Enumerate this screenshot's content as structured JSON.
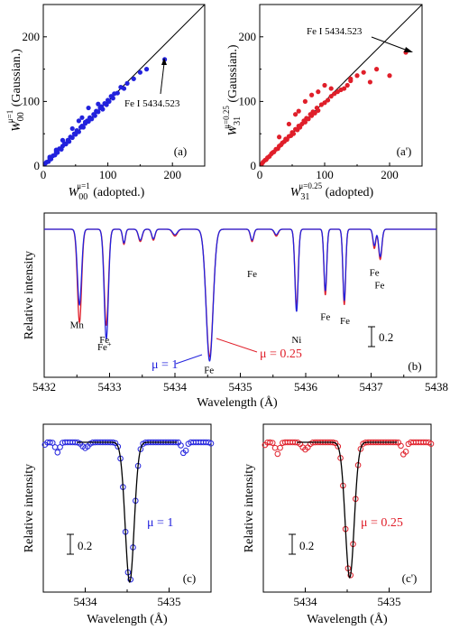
{
  "colors": {
    "mu1": "#2222dd",
    "mu025": "#e01f2a",
    "fit": "#000000"
  },
  "chart_data": [
    {
      "panel": "a",
      "type": "scatter",
      "panel_label": "(a)",
      "xlabel_main": "W",
      "xlabel_sub": "00",
      "xlabel_sup": "μ=1",
      "xlabel_tail": " (adopted.)",
      "ylabel_main": "W",
      "ylabel_sub": "00",
      "ylabel_sup": "μ=1",
      "ylabel_tail": " (Gaussian.)",
      "xlim": [
        0,
        250
      ],
      "ylim": [
        0,
        250
      ],
      "xticks": [
        "0",
        "100",
        "200"
      ],
      "xtick_values": [
        0,
        100,
        200
      ],
      "yticks": [
        "0",
        "100",
        "200"
      ],
      "ytick_values": [
        0,
        100,
        200
      ],
      "annotation": "Fe I 5434.523",
      "annotated_point": [
        188,
        165
      ],
      "points": [
        [
          3,
          4
        ],
        [
          5,
          6
        ],
        [
          8,
          7
        ],
        [
          10,
          12
        ],
        [
          12,
          11
        ],
        [
          15,
          16
        ],
        [
          18,
          17
        ],
        [
          20,
          22
        ],
        [
          22,
          21
        ],
        [
          25,
          27
        ],
        [
          28,
          26
        ],
        [
          30,
          31
        ],
        [
          33,
          35
        ],
        [
          35,
          34
        ],
        [
          38,
          40
        ],
        [
          40,
          38
        ],
        [
          42,
          45
        ],
        [
          45,
          44
        ],
        [
          48,
          50
        ],
        [
          50,
          49
        ],
        [
          52,
          55
        ],
        [
          55,
          53
        ],
        [
          58,
          60
        ],
        [
          60,
          62
        ],
        [
          62,
          60
        ],
        [
          65,
          66
        ],
        [
          68,
          70
        ],
        [
          70,
          69
        ],
        [
          72,
          75
        ],
        [
          75,
          73
        ],
        [
          78,
          80
        ],
        [
          80,
          78
        ],
        [
          82,
          85
        ],
        [
          85,
          84
        ],
        [
          88,
          90
        ],
        [
          90,
          92
        ],
        [
          92,
          88
        ],
        [
          95,
          97
        ],
        [
          98,
          95
        ],
        [
          100,
          102
        ],
        [
          102,
          100
        ],
        [
          105,
          108
        ],
        [
          108,
          105
        ],
        [
          110,
          112
        ],
        [
          115,
          113
        ],
        [
          120,
          122
        ],
        [
          125,
          120
        ],
        [
          130,
          128
        ],
        [
          140,
          135
        ],
        [
          150,
          145
        ],
        [
          160,
          150
        ],
        [
          55,
          70
        ],
        [
          60,
          75
        ],
        [
          70,
          90
        ],
        [
          30,
          40
        ],
        [
          45,
          58
        ],
        [
          65,
          68
        ],
        [
          85,
          96
        ],
        [
          20,
          25
        ],
        [
          10,
          14
        ],
        [
          188,
          165
        ]
      ]
    },
    {
      "panel": "a'",
      "type": "scatter",
      "panel_label": "(a')",
      "xlabel_main": "W",
      "xlabel_sub": "31",
      "xlabel_sup": "μ=0.25",
      "xlabel_tail": " (adopted)",
      "ylabel_main": "W",
      "ylabel_sub": "31",
      "ylabel_sup": "μ=0.25",
      "ylabel_tail": " (Gaussian.)",
      "xlim": [
        0,
        250
      ],
      "ylim": [
        0,
        250
      ],
      "xticks": [
        "0",
        "100",
        "200"
      ],
      "xtick_values": [
        0,
        100,
        200
      ],
      "yticks": [
        "0",
        "100",
        "200"
      ],
      "ytick_values": [
        0,
        100,
        200
      ],
      "annotation": "Fe I 5434.523",
      "annotated_point": [
        225,
        176
      ],
      "points": [
        [
          3,
          3
        ],
        [
          5,
          6
        ],
        [
          8,
          9
        ],
        [
          10,
          10
        ],
        [
          12,
          13
        ],
        [
          15,
          15
        ],
        [
          18,
          19
        ],
        [
          20,
          21
        ],
        [
          22,
          22
        ],
        [
          25,
          26
        ],
        [
          28,
          27
        ],
        [
          30,
          31
        ],
        [
          33,
          33
        ],
        [
          35,
          36
        ],
        [
          38,
          38
        ],
        [
          40,
          42
        ],
        [
          42,
          41
        ],
        [
          45,
          46
        ],
        [
          48,
          47
        ],
        [
          50,
          52
        ],
        [
          52,
          50
        ],
        [
          55,
          57
        ],
        [
          58,
          56
        ],
        [
          60,
          62
        ],
        [
          62,
          60
        ],
        [
          65,
          65
        ],
        [
          68,
          70
        ],
        [
          70,
          68
        ],
        [
          72,
          74
        ],
        [
          75,
          73
        ],
        [
          78,
          80
        ],
        [
          80,
          78
        ],
        [
          82,
          84
        ],
        [
          85,
          82
        ],
        [
          88,
          90
        ],
        [
          90,
          86
        ],
        [
          95,
          95
        ],
        [
          100,
          98
        ],
        [
          105,
          102
        ],
        [
          110,
          108
        ],
        [
          115,
          112
        ],
        [
          120,
          115
        ],
        [
          125,
          118
        ],
        [
          130,
          120
        ],
        [
          135,
          125
        ],
        [
          140,
          132
        ],
        [
          150,
          140
        ],
        [
          160,
          145
        ],
        [
          170,
          130
        ],
        [
          180,
          150
        ],
        [
          200,
          140
        ],
        [
          55,
          80
        ],
        [
          60,
          85
        ],
        [
          70,
          100
        ],
        [
          30,
          45
        ],
        [
          45,
          65
        ],
        [
          80,
          110
        ],
        [
          90,
          115
        ],
        [
          100,
          125
        ],
        [
          110,
          120
        ],
        [
          140,
          135
        ],
        [
          225,
          176
        ]
      ]
    },
    {
      "panel": "b",
      "type": "line",
      "panel_label": "(b)",
      "xlabel": "Wavelength (Å)",
      "ylabel": "Relative intensity",
      "xlim": [
        5432,
        5438
      ],
      "xticks": [
        "5432",
        "5433",
        "5434",
        "5435",
        "5436",
        "5437",
        "5438"
      ],
      "xtick_values": [
        5432,
        5433,
        5434,
        5435,
        5436,
        5437,
        5438
      ],
      "ylim": [
        0.0,
        1.05
      ],
      "scale_bar_label": "0.2",
      "mu1_label": "μ = 1",
      "mu025_label": "μ = 0.25",
      "line_labels": [
        {
          "text": "Mn",
          "x": 5432.5,
          "y": 0.28
        },
        {
          "text": "Fe",
          "x": 5432.92,
          "y": 0.17
        },
        {
          "text": "Fe+",
          "x": 5432.92,
          "y": 0.12
        },
        {
          "text": "Fe",
          "x": 5434.52,
          "y": -0.05
        },
        {
          "text": "Fe",
          "x": 5435.18,
          "y": 0.65
        },
        {
          "text": "Ni",
          "x": 5435.86,
          "y": 0.17
        },
        {
          "text": "Fe",
          "x": 5436.3,
          "y": 0.34
        },
        {
          "text": "Fe",
          "x": 5436.6,
          "y": 0.31
        },
        {
          "text": "Fe",
          "x": 5437.05,
          "y": 0.66
        },
        {
          "text": "Fe",
          "x": 5437.13,
          "y": 0.57
        }
      ],
      "lines": [
        {
          "center": 5432.54,
          "depth_mu1": 0.55,
          "depth_mu025": 0.68,
          "width": 0.045
        },
        {
          "center": 5432.95,
          "depth_mu1": 0.8,
          "depth_mu025": 0.7,
          "width": 0.045
        },
        {
          "center": 5433.22,
          "depth_mu1": 0.1,
          "depth_mu025": 0.11,
          "width": 0.03
        },
        {
          "center": 5433.47,
          "depth_mu1": 0.08,
          "depth_mu025": 0.09,
          "width": 0.04
        },
        {
          "center": 5433.67,
          "depth_mu1": 0.07,
          "depth_mu025": 0.08,
          "width": 0.035
        },
        {
          "center": 5434.0,
          "depth_mu1": 0.04,
          "depth_mu025": 0.05,
          "width": 0.05
        },
        {
          "center": 5434.53,
          "depth_mu1": 0.96,
          "depth_mu025": 0.93,
          "width": 0.075
        },
        {
          "center": 5435.18,
          "depth_mu1": 0.08,
          "depth_mu025": 0.09,
          "width": 0.035
        },
        {
          "center": 5435.55,
          "depth_mu1": 0.04,
          "depth_mu025": 0.05,
          "width": 0.04
        },
        {
          "center": 5435.86,
          "depth_mu1": 0.6,
          "depth_mu025": 0.56,
          "width": 0.035
        },
        {
          "center": 5436.3,
          "depth_mu1": 0.45,
          "depth_mu025": 0.48,
          "width": 0.03
        },
        {
          "center": 5436.59,
          "depth_mu1": 0.52,
          "depth_mu025": 0.55,
          "width": 0.03
        },
        {
          "center": 5437.05,
          "depth_mu1": 0.12,
          "depth_mu025": 0.14,
          "width": 0.03
        },
        {
          "center": 5437.14,
          "depth_mu1": 0.2,
          "depth_mu025": 0.22,
          "width": 0.035
        }
      ]
    },
    {
      "panel": "c",
      "type": "line",
      "panel_label": "(c)",
      "xlabel": "Wavelength (Å)",
      "ylabel": "Relative intensity",
      "xlim": [
        5433.5,
        5435.5
      ],
      "xticks": [
        "5434",
        "5435"
      ],
      "xtick_values": [
        5434,
        5435
      ],
      "ylim": [
        0.0,
        1.05
      ],
      "scale_bar_label": "0.2",
      "series_label": "μ = 1",
      "series": "mu1"
    },
    {
      "panel": "c'",
      "type": "line",
      "panel_label": "(c')",
      "xlabel": "Wavelength (Å)",
      "ylabel": "Relative intensity",
      "xlim": [
        5433.5,
        5435.5
      ],
      "xticks": [
        "5434",
        "5435"
      ],
      "xtick_values": [
        5434,
        5435
      ],
      "ylim": [
        0.0,
        1.05
      ],
      "scale_bar_label": "0.2",
      "series_label": "μ = 0.25",
      "series": "mu025"
    }
  ]
}
